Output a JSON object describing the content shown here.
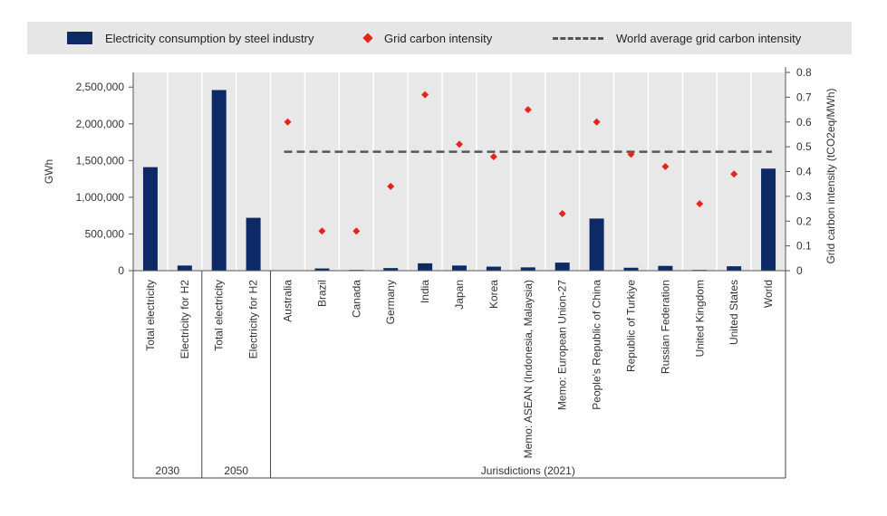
{
  "chart_data": {
    "type": "bar",
    "legend": {
      "position": "top",
      "entries": [
        {
          "label": "Electricity consumption by steel industry",
          "symbol": "bar",
          "color": "#0d2a66"
        },
        {
          "label": "Grid carbon intensity",
          "symbol": "diamond",
          "color": "#e3261b"
        },
        {
          "label": "World average grid carbon intensity",
          "symbol": "dashed-line",
          "color": "#555555"
        }
      ]
    },
    "ylabel": "GWh",
    "y2label": "Grid carbon intensity (tCO2eq/MWh)",
    "ylim": [
      0,
      2700000
    ],
    "y2lim": [
      0,
      0.8
    ],
    "yticks": [
      0,
      500000,
      1000000,
      1500000,
      2000000,
      2500000
    ],
    "ytick_labels": [
      "0",
      "500,000",
      "1,000,000",
      "1,500,000",
      "2,000,000",
      "2,500,000"
    ],
    "y2ticks": [
      0,
      0.1,
      0.2,
      0.3,
      0.4,
      0.5,
      0.6,
      0.7,
      0.8
    ],
    "y2tick_labels": [
      "0",
      "0.1",
      "0.2",
      "0.3",
      "0.4",
      "0.5",
      "0.6",
      "0.7",
      "0.8"
    ],
    "categories": [
      "Total electricity",
      "Electricity for H2",
      "Total electricity",
      "Electricity for H2",
      "Australia",
      "Brazil",
      "Canada",
      "Germany",
      "India",
      "Japan",
      "Korea",
      "Memo: ASEAN (Indonesia, Malaysia)",
      "Memo: European Union-27",
      "People's Republic of China",
      "Republic of Turkiye",
      "Russian Federation",
      "United Kingdom",
      "United States",
      "World"
    ],
    "groups": [
      {
        "label": "2030",
        "span": [
          0,
          1
        ]
      },
      {
        "label": "2050",
        "span": [
          2,
          3
        ]
      },
      {
        "label": "Jurisdictions (2021)",
        "span": [
          4,
          18
        ]
      }
    ],
    "series": [
      {
        "name": "Electricity consumption by steel industry",
        "type": "bar",
        "axis": "left",
        "values": [
          1410000,
          70000,
          2460000,
          720000,
          5000,
          30000,
          10000,
          35000,
          100000,
          70000,
          55000,
          45000,
          110000,
          710000,
          40000,
          65000,
          10000,
          60000,
          1390000
        ]
      },
      {
        "name": "Grid carbon intensity",
        "type": "scatter",
        "axis": "right",
        "values": [
          null,
          null,
          null,
          null,
          0.6,
          0.16,
          0.16,
          0.34,
          0.71,
          0.51,
          0.46,
          0.65,
          0.23,
          0.6,
          0.47,
          0.42,
          0.27,
          0.39,
          null
        ]
      },
      {
        "name": "World average grid carbon intensity",
        "type": "line",
        "axis": "right",
        "value": 0.48,
        "from_category": 4,
        "to_category": 18
      }
    ]
  }
}
